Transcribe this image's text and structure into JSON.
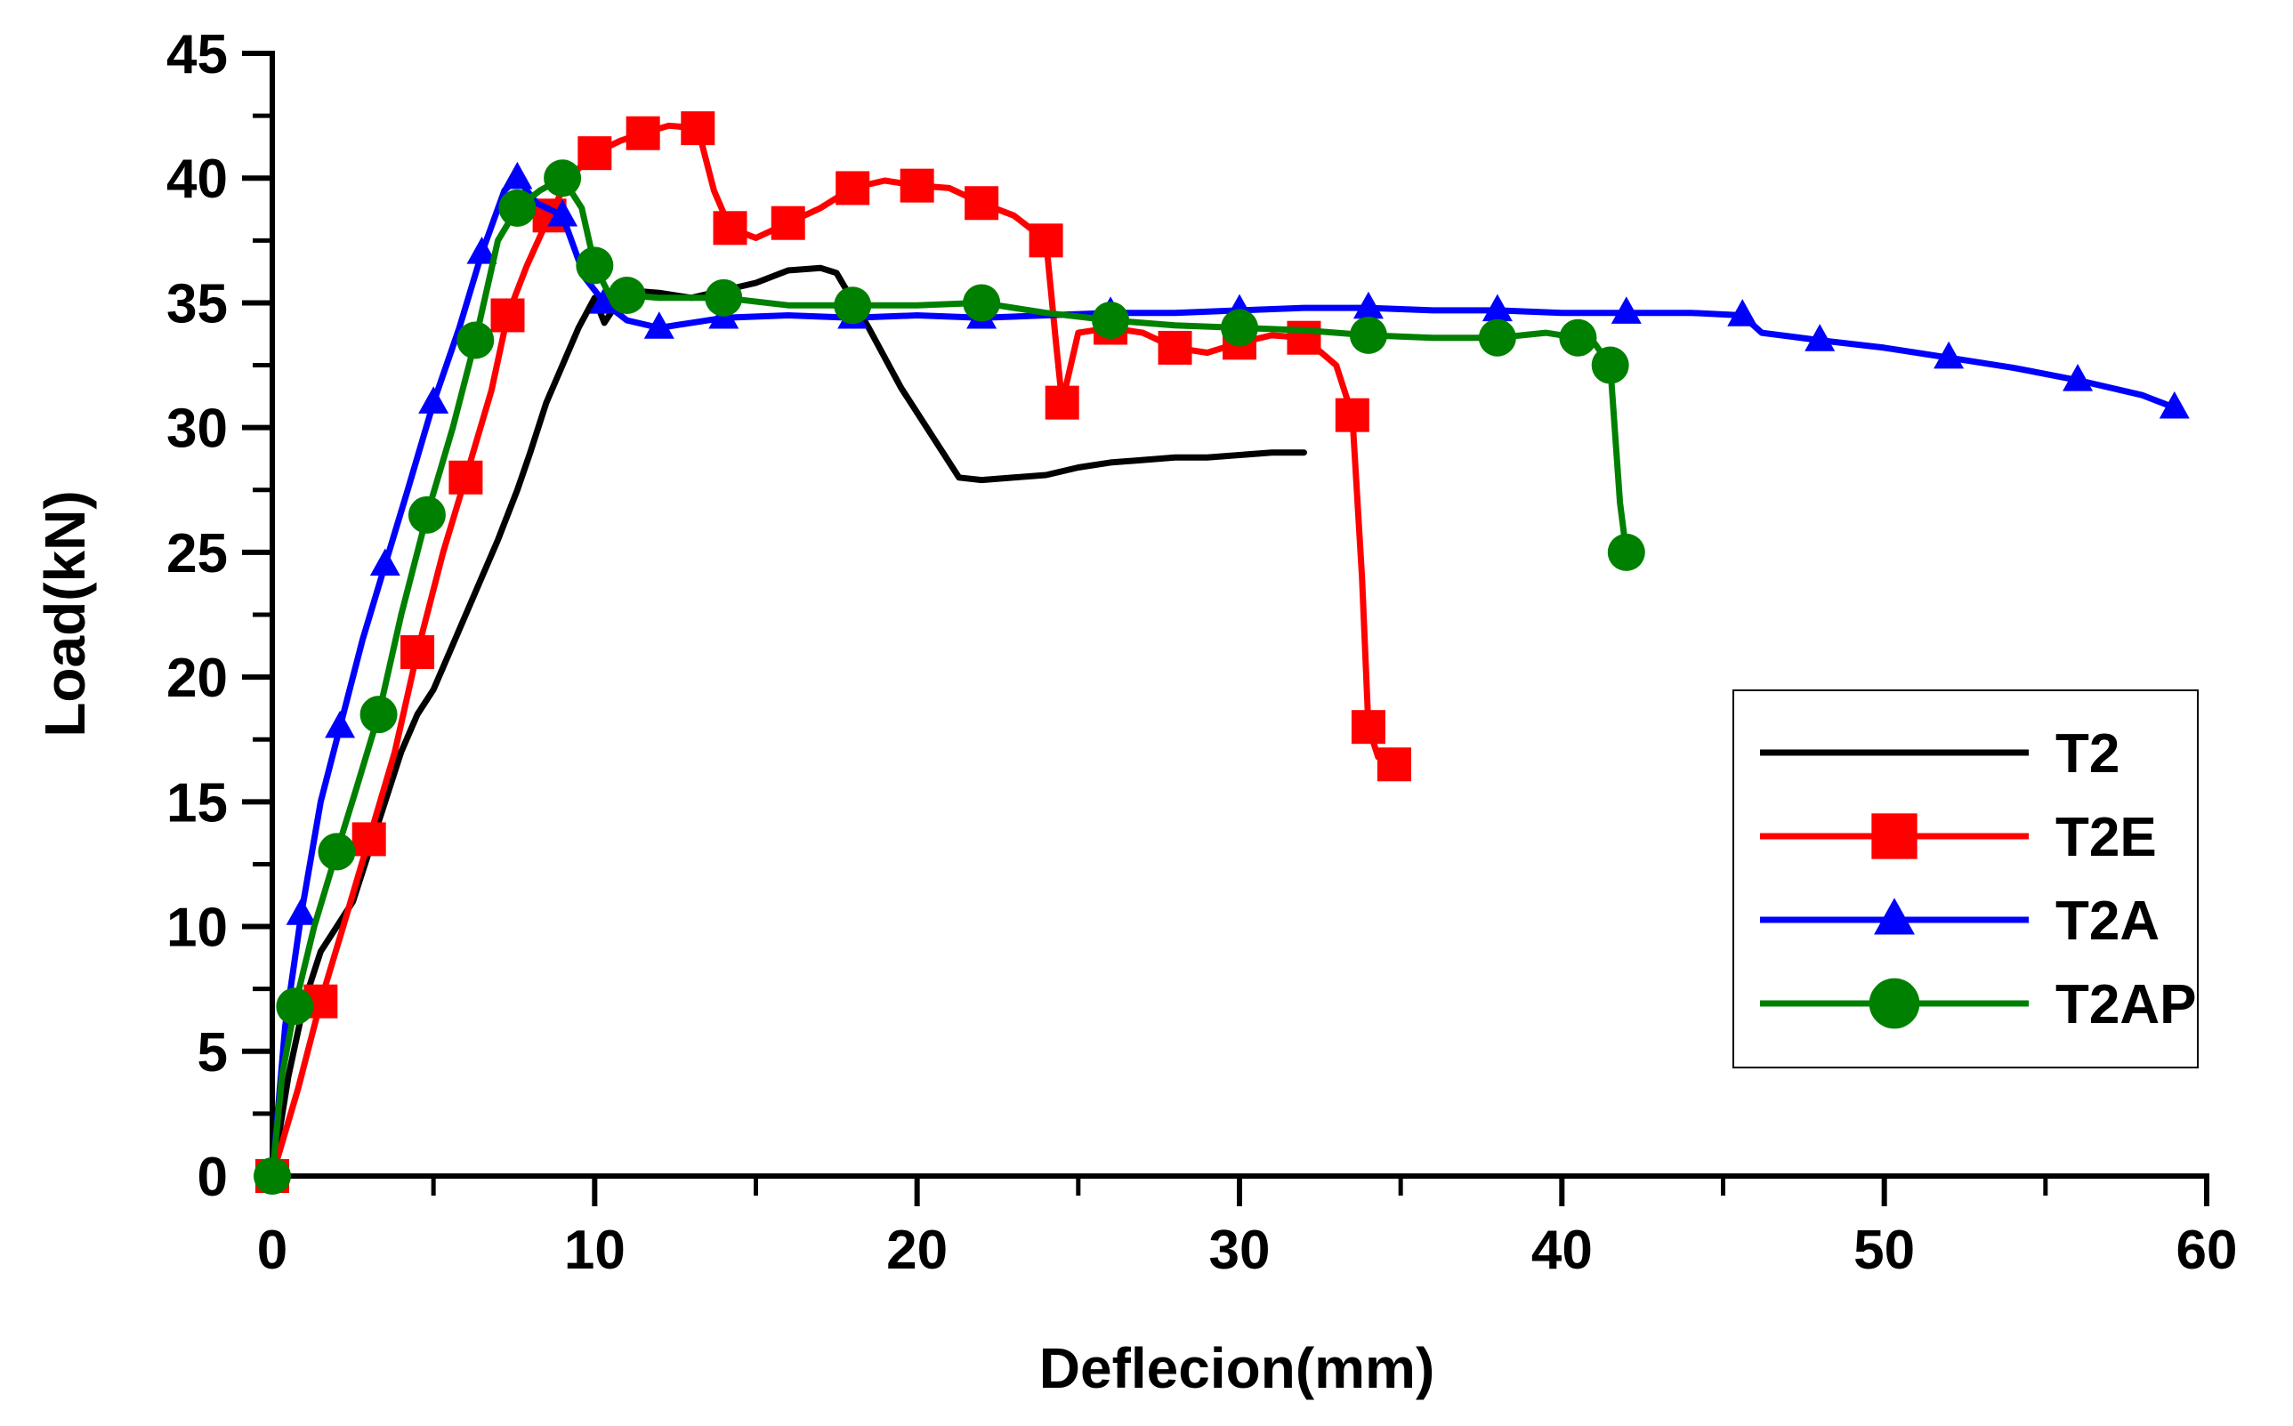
{
  "chart_data": {
    "type": "line",
    "title": "",
    "xlabel": "Deflecion(mm)",
    "ylabel": "Load(kN)",
    "xlim": [
      0,
      60
    ],
    "ylim": [
      0,
      45
    ],
    "xticks": [
      0,
      10,
      20,
      30,
      40,
      50,
      60
    ],
    "yticks": [
      0,
      5,
      10,
      15,
      20,
      25,
      30,
      35,
      40,
      45
    ],
    "grid": false,
    "legend_position": "lower-right",
    "series": [
      {
        "name": "T2",
        "color": "#000000",
        "marker": "none",
        "x": [
          0,
          0.5,
          1.0,
          1.5,
          2.0,
          2.5,
          3.0,
          3.5,
          4.0,
          4.5,
          5.0,
          5.5,
          6.0,
          6.5,
          7.0,
          7.3,
          7.6,
          8.0,
          8.5,
          9.0,
          9.5,
          10.0,
          10.3,
          10.6,
          11.0,
          12.0,
          13.0,
          14.0,
          15.0,
          16.0,
          17.0,
          17.5,
          18.5,
          19.5,
          20.5,
          21.3,
          22.0,
          23.0,
          24.0,
          25.0,
          26.0,
          27.0,
          28.0,
          29.0,
          30.0,
          31.0,
          32.0
        ],
        "values": [
          0,
          4,
          7,
          9,
          10,
          11,
          13,
          15,
          17,
          18.5,
          19.5,
          21,
          22.5,
          24,
          25.5,
          26.5,
          27.5,
          29,
          31,
          32.5,
          34,
          35.2,
          34.2,
          34.8,
          35.5,
          35.4,
          35.2,
          35.5,
          35.8,
          36.3,
          36.4,
          36.2,
          34.0,
          31.6,
          29.6,
          28.0,
          27.9,
          28.0,
          28.1,
          28.4,
          28.6,
          28.7,
          28.8,
          28.8,
          28.9,
          29.0,
          29.0
        ]
      },
      {
        "name": "T2E",
        "color": "#ff0000",
        "marker": "square",
        "x": [
          0,
          0.8,
          1.5,
          2.2,
          3.0,
          3.8,
          4.5,
          5.3,
          6.0,
          6.8,
          7.3,
          7.9,
          8.6,
          9.2,
          10.0,
          10.8,
          11.5,
          12.3,
          13.2,
          13.7,
          14.2,
          15.0,
          16.0,
          17.0,
          18.0,
          19.0,
          20.0,
          21.0,
          22.0,
          23.0,
          24.0,
          24.3,
          24.5,
          25.0,
          26.0,
          27.0,
          28.0,
          29.0,
          30.0,
          31.0,
          32.0,
          33.0,
          33.5,
          33.8,
          34.0,
          34.3,
          34.8
        ],
        "values": [
          0,
          3.5,
          7,
          10,
          13.5,
          17,
          21,
          25,
          28,
          31.5,
          34.5,
          36.5,
          38.5,
          40,
          41,
          41.5,
          41.8,
          42.1,
          42.0,
          39.5,
          38.0,
          37.6,
          38.2,
          38.8,
          39.6,
          39.9,
          39.7,
          39.6,
          39.0,
          38.5,
          37.5,
          33.5,
          31.0,
          33.8,
          34.0,
          33.8,
          33.2,
          33.0,
          33.4,
          33.7,
          33.6,
          32.5,
          30.5,
          24.0,
          18.0,
          16.8,
          16.5
        ]
      },
      {
        "name": "T2A",
        "color": "#0000ff",
        "marker": "triangle",
        "x": [
          0,
          0.4,
          0.9,
          1.5,
          2.1,
          2.8,
          3.5,
          4.2,
          5.0,
          5.8,
          6.5,
          7.2,
          7.6,
          8.2,
          9.0,
          9.7,
          10.3,
          11.0,
          12.0,
          13.0,
          14.0,
          16.0,
          18.0,
          20.0,
          22.0,
          24.0,
          26.0,
          28.0,
          30.0,
          32.0,
          34.0,
          36.0,
          38.0,
          40.0,
          42.0,
          44.0,
          45.6,
          46.2,
          48.0,
          50.0,
          52.0,
          54.0,
          56.0,
          58.0,
          59.0
        ],
        "values": [
          0,
          6,
          10.5,
          15,
          18,
          21.5,
          24.5,
          27.5,
          31,
          34,
          37,
          39.5,
          40.0,
          39.0,
          38.5,
          36.0,
          35.0,
          34.3,
          34.0,
          34.2,
          34.4,
          34.5,
          34.4,
          34.5,
          34.4,
          34.5,
          34.6,
          34.6,
          34.7,
          34.8,
          34.8,
          34.7,
          34.7,
          34.6,
          34.6,
          34.6,
          34.5,
          33.8,
          33.5,
          33.2,
          32.8,
          32.4,
          31.9,
          31.3,
          30.8
        ]
      },
      {
        "name": "T2AP",
        "color": "#008000",
        "marker": "circle",
        "x": [
          0,
          0.3,
          0.7,
          1.3,
          2.0,
          2.6,
          3.3,
          4.0,
          4.8,
          5.6,
          6.3,
          7.0,
          7.6,
          8.3,
          9.0,
          9.6,
          10.0,
          10.5,
          11.0,
          12.0,
          14.0,
          16.0,
          18.0,
          20.0,
          22.0,
          24.0,
          26.0,
          28.0,
          30.0,
          32.0,
          34.0,
          36.0,
          38.0,
          39.5,
          40.5,
          41.0,
          41.5,
          41.8,
          42.0
        ],
        "values": [
          0,
          4,
          6.8,
          10,
          13,
          15.5,
          18.5,
          22.5,
          26.5,
          30.0,
          33.5,
          37.5,
          38.8,
          39.5,
          40.0,
          38.8,
          36.5,
          35.2,
          35.3,
          35.2,
          35.2,
          34.9,
          34.9,
          34.9,
          35.0,
          34.6,
          34.3,
          34.1,
          34.0,
          33.9,
          33.7,
          33.6,
          33.6,
          33.8,
          33.6,
          33.4,
          32.5,
          27.0,
          25.0
        ]
      }
    ]
  }
}
